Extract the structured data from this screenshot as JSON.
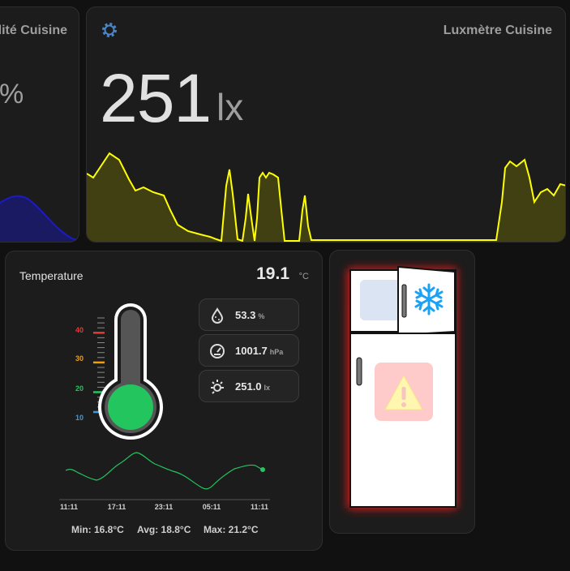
{
  "left_card": {
    "title": "Humidité Cuisine",
    "value_suffix": "%"
  },
  "lux_card": {
    "title": "Luxmètre Cuisine",
    "value": "251",
    "unit": "lx"
  },
  "temp_card": {
    "title": "Temperature",
    "value": "19.1",
    "unit": "°C",
    "scale_labels": [
      "40",
      "30",
      "20",
      "10"
    ],
    "level_fraction": 0.3,
    "readings": [
      {
        "value": "53.3",
        "unit": "%",
        "icon": "humidity-icon"
      },
      {
        "value": "1001.7",
        "unit": "hPa",
        "icon": "pressure-gauge-icon"
      },
      {
        "value": "251.0",
        "unit": "lx",
        "icon": "brightness-icon"
      }
    ],
    "time_labels": [
      "11:11",
      "17:11",
      "23:11",
      "05:11",
      "11:11"
    ],
    "stats": {
      "min": "Min: 16.8°C",
      "avg": "Avg: 18.8°C",
      "max": "Max: 21.2°C"
    }
  },
  "fridge_card": {
    "alert_icon": "warning-icon",
    "freezer_icon": "snowflake-icon"
  },
  "colors": {
    "lux_line": "#ffff00",
    "temp_fill": "#22c55e",
    "humidity_area": "#1a1ac8",
    "scale_40": "#e53935",
    "scale_30": "#f59e0b",
    "scale_20": "#22c55e",
    "scale_10": "#3b9ae1"
  }
}
